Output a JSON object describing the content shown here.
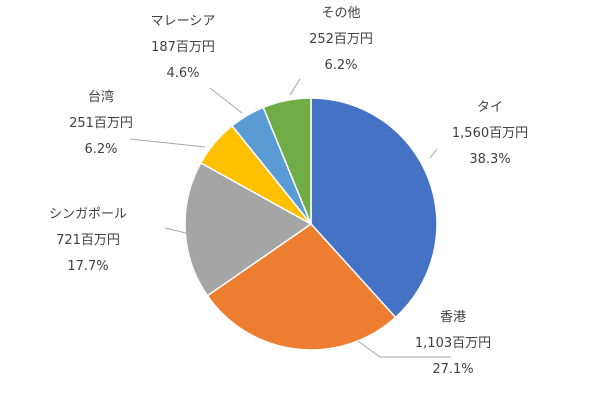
{
  "chart_data": {
    "type": "pie",
    "start_angle_deg": 0,
    "direction": "clockwise",
    "slices": [
      {
        "name": "タイ",
        "amount": "1,560百万円",
        "percent": "38.3%",
        "value": 1560,
        "color": "#4472c4"
      },
      {
        "name": "香港",
        "amount": "1,103百万円",
        "percent": "27.1%",
        "value": 1103,
        "color": "#ed7d31"
      },
      {
        "name": "シンガポール",
        "amount": "721百万円",
        "percent": "17.7%",
        "value": 721,
        "color": "#a5a5a5"
      },
      {
        "name": "台湾",
        "amount": "251百万円",
        "percent": "6.2%",
        "value": 251,
        "color": "#ffc000"
      },
      {
        "name": "マレーシア",
        "amount": "187百万円",
        "percent": "4.6%",
        "value": 187,
        "color": "#5b9bd5"
      },
      {
        "name": "その他",
        "amount": "252百万円",
        "percent": "6.2%",
        "value": 252,
        "color": "#70ad47"
      }
    ]
  }
}
